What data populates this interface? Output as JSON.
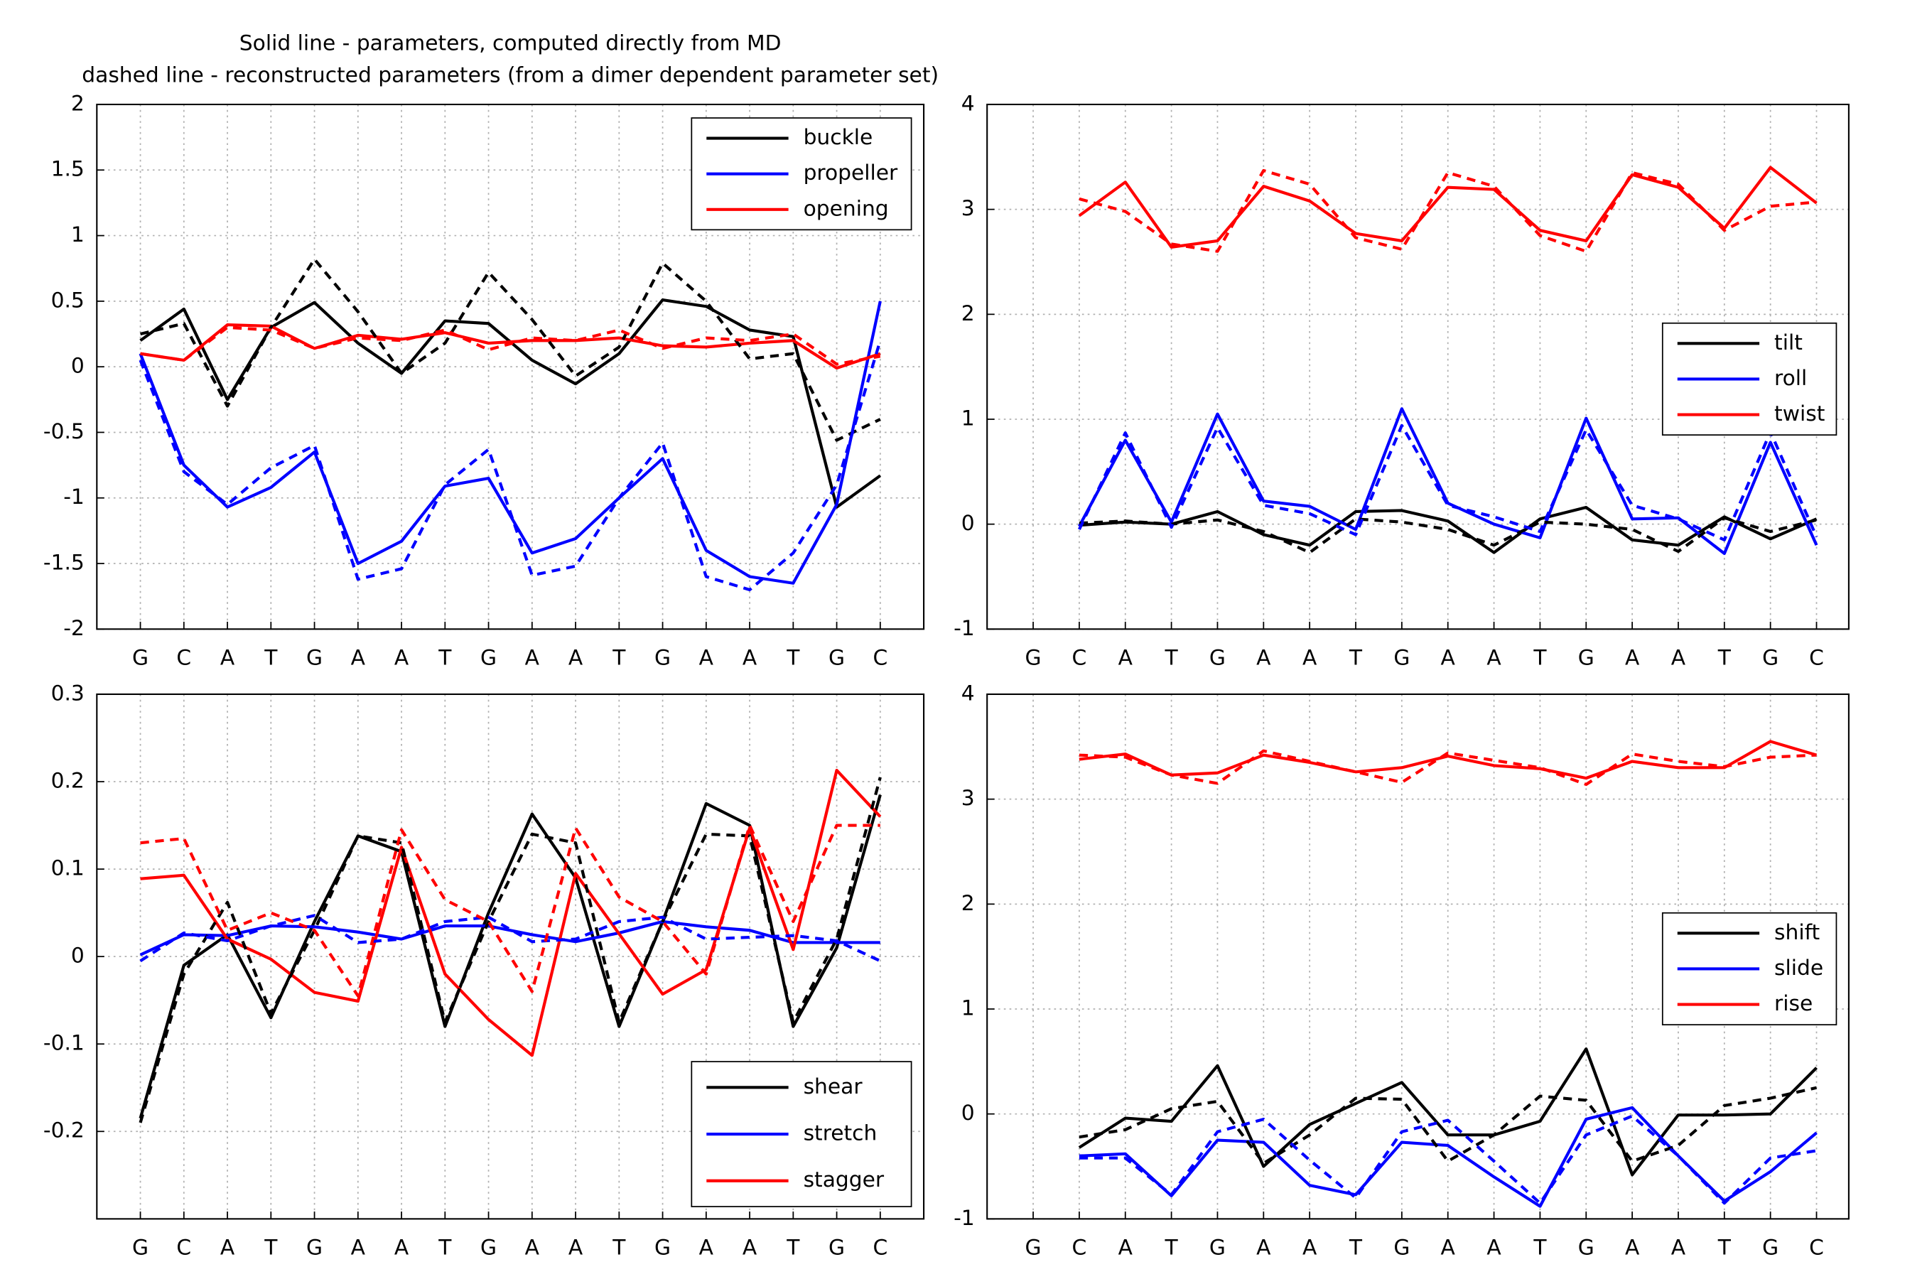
{
  "chart_data": [
    {
      "type": "line",
      "title": "Solid line - parameters, computed directly from MD",
      "subtitle": "dashed line - reconstructed parameters (from a dimer dependent parameter set)",
      "categories": [
        "G",
        "C",
        "A",
        "T",
        "G",
        "A",
        "A",
        "T",
        "G",
        "A",
        "A",
        "T",
        "G",
        "A",
        "A",
        "T",
        "G",
        "C"
      ],
      "x": [
        1,
        2,
        3,
        4,
        5,
        6,
        7,
        8,
        9,
        10,
        11,
        12,
        13,
        14,
        15,
        16,
        17,
        18
      ],
      "xlim": [
        0,
        19
      ],
      "ylim": [
        -2,
        2
      ],
      "yticks": [
        -2,
        -1.5,
        -1,
        -0.5,
        0,
        0.5,
        1,
        1.5,
        2
      ],
      "grid": true,
      "legend": "upper right",
      "series": [
        {
          "name": "buckle",
          "color": "#000000",
          "values": [
            0.2,
            0.44,
            -0.25,
            0.3,
            0.49,
            0.18,
            -0.05,
            0.35,
            0.33,
            0.05,
            -0.13,
            0.1,
            0.51,
            0.46,
            0.28,
            0.23,
            -1.07,
            -0.83
          ]
        },
        {
          "name": "propeller",
          "color": "#0000ff",
          "values": [
            0.1,
            -0.75,
            -1.07,
            -0.92,
            -0.65,
            -1.5,
            -1.33,
            -0.91,
            -0.85,
            -1.42,
            -1.31,
            -1.0,
            -0.7,
            -1.4,
            -1.6,
            -1.65,
            -1.05,
            0.5
          ]
        },
        {
          "name": "opening",
          "color": "#ff0000",
          "values": [
            0.1,
            0.05,
            0.32,
            0.31,
            0.14,
            0.24,
            0.21,
            0.26,
            0.18,
            0.2,
            0.2,
            0.22,
            0.16,
            0.15,
            0.18,
            0.2,
            -0.01,
            0.1
          ]
        },
        {
          "color": "#000000",
          "dashed": true,
          "values": [
            0.25,
            0.33,
            -0.3,
            0.3,
            0.82,
            0.42,
            -0.05,
            0.18,
            0.72,
            0.36,
            -0.07,
            0.15,
            0.79,
            0.5,
            0.06,
            0.1,
            -0.56,
            -0.4
          ]
        },
        {
          "color": "#0000ff",
          "dashed": true,
          "values": [
            0.05,
            -0.8,
            -1.05,
            -0.77,
            -0.6,
            -1.62,
            -1.54,
            -0.9,
            -0.63,
            -1.59,
            -1.52,
            -1.0,
            -0.58,
            -1.6,
            -1.7,
            -1.42,
            -0.9,
            0.2
          ]
        },
        {
          "color": "#ff0000",
          "dashed": true,
          "values": [
            0.1,
            0.05,
            0.3,
            0.28,
            0.14,
            0.22,
            0.2,
            0.28,
            0.13,
            0.22,
            0.2,
            0.28,
            0.14,
            0.22,
            0.2,
            0.25,
            0.02,
            0.08
          ]
        }
      ]
    },
    {
      "type": "line",
      "categories": [
        "G",
        "C",
        "A",
        "T",
        "G",
        "A",
        "A",
        "T",
        "G",
        "A",
        "A",
        "T",
        "G",
        "A",
        "A",
        "T",
        "G",
        "C"
      ],
      "x": [
        2,
        3,
        4,
        5,
        6,
        7,
        8,
        9,
        10,
        11,
        12,
        13,
        14,
        15,
        16,
        17,
        18
      ],
      "xlim": [
        0,
        18.7
      ],
      "ylim": [
        -1,
        4
      ],
      "yticks": [
        -1,
        0,
        1,
        2,
        3,
        4
      ],
      "grid": true,
      "legend": "center right",
      "series": [
        {
          "name": "tilt",
          "color": "#000000",
          "values": [
            -0.01,
            0.02,
            0.0,
            0.12,
            -0.1,
            -0.2,
            0.12,
            0.13,
            0.03,
            -0.27,
            0.05,
            0.16,
            -0.15,
            -0.2,
            0.07,
            -0.14,
            0.05
          ]
        },
        {
          "name": "roll",
          "color": "#0000ff",
          "values": [
            -0.02,
            0.8,
            0.02,
            1.05,
            0.22,
            0.17,
            -0.05,
            1.1,
            0.2,
            0.0,
            -0.13,
            1.01,
            0.05,
            0.06,
            -0.28,
            0.78,
            -0.2
          ]
        },
        {
          "name": "twist",
          "color": "#ff0000",
          "values": [
            2.94,
            3.26,
            2.64,
            2.7,
            3.22,
            3.08,
            2.77,
            2.7,
            3.21,
            3.19,
            2.8,
            2.7,
            3.33,
            3.21,
            2.82,
            3.4,
            3.06
          ]
        },
        {
          "color": "#000000",
          "dashed": true,
          "values": [
            0.01,
            0.03,
            0.0,
            0.04,
            -0.07,
            -0.27,
            0.05,
            0.02,
            -0.05,
            -0.2,
            0.02,
            0.0,
            -0.05,
            -0.26,
            0.06,
            -0.07,
            0.04
          ]
        },
        {
          "color": "#0000ff",
          "dashed": true,
          "values": [
            -0.05,
            0.87,
            -0.03,
            0.92,
            0.18,
            0.1,
            -0.1,
            0.94,
            0.18,
            0.07,
            -0.07,
            0.9,
            0.18,
            0.05,
            -0.15,
            0.88,
            -0.12
          ]
        },
        {
          "color": "#ff0000",
          "dashed": true,
          "values": [
            3.1,
            2.98,
            2.67,
            2.6,
            3.37,
            3.24,
            2.73,
            2.62,
            3.35,
            3.22,
            2.75,
            2.6,
            3.35,
            3.24,
            2.8,
            3.03,
            3.07
          ]
        }
      ]
    },
    {
      "type": "line",
      "categories": [
        "G",
        "C",
        "A",
        "T",
        "G",
        "A",
        "A",
        "T",
        "G",
        "A",
        "A",
        "T",
        "G",
        "A",
        "A",
        "T",
        "G",
        "C"
      ],
      "x": [
        1,
        2,
        3,
        4,
        5,
        6,
        7,
        8,
        9,
        10,
        11,
        12,
        13,
        14,
        15,
        16,
        17,
        18
      ],
      "xlim": [
        0,
        19
      ],
      "ylim": [
        -0.3,
        0.3
      ],
      "yticks": [
        -0.2,
        -0.1,
        0,
        0.1,
        0.2,
        0.3
      ],
      "grid": true,
      "legend": "lower right",
      "series": [
        {
          "name": "shear",
          "color": "#000000",
          "values": [
            -0.185,
            -0.01,
            0.025,
            -0.07,
            0.04,
            0.138,
            0.12,
            -0.08,
            0.05,
            0.163,
            0.09,
            -0.08,
            0.04,
            0.175,
            0.15,
            -0.08,
            0.01,
            0.185
          ]
        },
        {
          "name": "stretch",
          "color": "#0000ff",
          "values": [
            0.002,
            0.025,
            0.024,
            0.035,
            0.034,
            0.028,
            0.02,
            0.035,
            0.035,
            0.025,
            0.017,
            0.027,
            0.04,
            0.034,
            0.03,
            0.016,
            0.016,
            0.016
          ]
        },
        {
          "name": "stagger",
          "color": "#ff0000",
          "values": [
            0.089,
            0.093,
            0.02,
            -0.003,
            -0.041,
            -0.051,
            0.125,
            -0.02,
            -0.072,
            -0.113,
            0.095,
            0.026,
            -0.043,
            -0.015,
            0.147,
            0.008,
            0.213,
            0.16
          ]
        },
        {
          "color": "#000000",
          "dashed": true,
          "values": [
            -0.19,
            -0.02,
            0.062,
            -0.065,
            0.03,
            0.138,
            0.13,
            -0.075,
            0.04,
            0.14,
            0.13,
            -0.075,
            0.04,
            0.14,
            0.138,
            -0.075,
            0.02,
            0.205
          ]
        },
        {
          "color": "#0000ff",
          "dashed": true,
          "values": [
            -0.005,
            0.027,
            0.018,
            0.035,
            0.047,
            0.016,
            0.02,
            0.04,
            0.045,
            0.017,
            0.02,
            0.04,
            0.045,
            0.02,
            0.022,
            0.024,
            0.018,
            -0.005
          ]
        },
        {
          "color": "#ff0000",
          "dashed": true,
          "values": [
            0.13,
            0.135,
            0.03,
            0.05,
            0.03,
            -0.045,
            0.145,
            0.065,
            0.04,
            -0.04,
            0.147,
            0.068,
            0.04,
            -0.02,
            0.15,
            0.04,
            0.15,
            0.15
          ]
        }
      ]
    },
    {
      "type": "line",
      "categories": [
        "G",
        "C",
        "A",
        "T",
        "G",
        "A",
        "A",
        "T",
        "G",
        "A",
        "A",
        "T",
        "G",
        "A",
        "A",
        "T",
        "G",
        "C"
      ],
      "x": [
        2,
        3,
        4,
        5,
        6,
        7,
        8,
        9,
        10,
        11,
        12,
        13,
        14,
        15,
        16,
        17,
        18
      ],
      "xlim": [
        0,
        18.7
      ],
      "ylim": [
        -1,
        4
      ],
      "yticks": [
        -1,
        0,
        1,
        2,
        3,
        4
      ],
      "grid": true,
      "legend": "center right",
      "series": [
        {
          "name": "shift",
          "color": "#000000",
          "values": [
            -0.32,
            -0.04,
            -0.07,
            0.46,
            -0.5,
            -0.1,
            0.1,
            0.3,
            -0.2,
            -0.2,
            -0.07,
            0.62,
            -0.58,
            -0.01,
            -0.01,
            0.0,
            0.44
          ]
        },
        {
          "name": "slide",
          "color": "#0000ff",
          "values": [
            -0.4,
            -0.38,
            -0.78,
            -0.25,
            -0.27,
            -0.68,
            -0.77,
            -0.27,
            -0.3,
            -0.6,
            -0.88,
            -0.05,
            0.06,
            -0.4,
            -0.83,
            -0.55,
            -0.18
          ]
        },
        {
          "name": "rise",
          "color": "#ff0000",
          "values": [
            3.38,
            3.43,
            3.23,
            3.25,
            3.42,
            3.35,
            3.26,
            3.3,
            3.41,
            3.32,
            3.29,
            3.2,
            3.36,
            3.3,
            3.3,
            3.55,
            3.42
          ]
        },
        {
          "color": "#000000",
          "dashed": true,
          "values": [
            -0.22,
            -0.15,
            0.05,
            0.12,
            -0.47,
            -0.2,
            0.15,
            0.14,
            -0.45,
            -0.2,
            0.17,
            0.13,
            -0.45,
            -0.3,
            0.08,
            0.15,
            0.25
          ]
        },
        {
          "color": "#0000ff",
          "dashed": true,
          "values": [
            -0.42,
            -0.42,
            -0.77,
            -0.17,
            -0.05,
            -0.44,
            -0.8,
            -0.17,
            -0.06,
            -0.45,
            -0.85,
            -0.2,
            -0.02,
            -0.4,
            -0.85,
            -0.42,
            -0.35
          ]
        },
        {
          "color": "#ff0000",
          "dashed": true,
          "values": [
            3.42,
            3.4,
            3.23,
            3.15,
            3.46,
            3.36,
            3.26,
            3.16,
            3.44,
            3.37,
            3.3,
            3.14,
            3.43,
            3.36,
            3.31,
            3.4,
            3.42
          ]
        }
      ]
    }
  ]
}
